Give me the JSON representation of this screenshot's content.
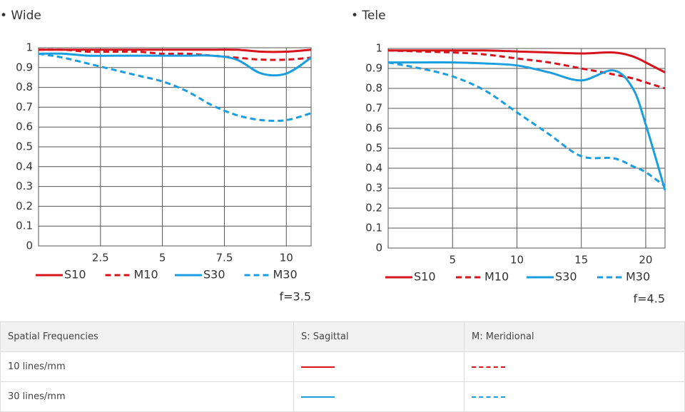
{
  "chart_data": [
    {
      "type": "line",
      "title": "• Wide",
      "annotation": "f=3.5",
      "x": [
        0,
        1,
        2,
        3,
        4,
        5,
        6,
        7,
        8,
        9,
        10,
        11
      ],
      "series": [
        {
          "name": "S10",
          "color": "#d7141e",
          "dashed": false,
          "values": [
            0.99,
            0.99,
            0.99,
            0.99,
            0.99,
            0.99,
            0.99,
            0.99,
            0.99,
            0.98,
            0.98,
            0.99
          ]
        },
        {
          "name": "M10",
          "color": "#d7141e",
          "dashed": true,
          "values": [
            0.99,
            0.99,
            0.98,
            0.98,
            0.98,
            0.97,
            0.97,
            0.96,
            0.95,
            0.94,
            0.94,
            0.95
          ]
        },
        {
          "name": "S30",
          "color": "#1a9ee0",
          "dashed": false,
          "values": [
            0.97,
            0.97,
            0.96,
            0.96,
            0.96,
            0.96,
            0.96,
            0.96,
            0.94,
            0.87,
            0.87,
            0.95
          ]
        },
        {
          "name": "M30",
          "color": "#1a9ee0",
          "dashed": true,
          "values": [
            0.97,
            0.95,
            0.92,
            0.89,
            0.86,
            0.83,
            0.78,
            0.71,
            0.66,
            0.635,
            0.635,
            0.67
          ]
        }
      ],
      "xlim": [
        0,
        11
      ],
      "xticks": [
        2.5,
        5,
        7.5,
        10
      ],
      "ylim": [
        0,
        1
      ],
      "yticks": [
        0,
        0.1,
        0.2,
        0.3,
        0.4,
        0.5,
        0.6,
        0.7,
        0.8,
        0.9,
        1
      ],
      "grid": true
    },
    {
      "type": "line",
      "title": "• Tele",
      "annotation": "f=4.5",
      "x": [
        0,
        2.5,
        5,
        7.5,
        10,
        12.5,
        15,
        17.5,
        19,
        20,
        21.5
      ],
      "series": [
        {
          "name": "S10",
          "color": "#d7141e",
          "dashed": false,
          "values": [
            0.99,
            0.99,
            0.99,
            0.99,
            0.985,
            0.98,
            0.975,
            0.98,
            0.96,
            0.93,
            0.88
          ]
        },
        {
          "name": "M10",
          "color": "#d7141e",
          "dashed": true,
          "values": [
            0.99,
            0.985,
            0.98,
            0.97,
            0.95,
            0.93,
            0.9,
            0.87,
            0.85,
            0.83,
            0.8
          ]
        },
        {
          "name": "S30",
          "color": "#1a9ee0",
          "dashed": false,
          "values": [
            0.93,
            0.93,
            0.93,
            0.925,
            0.915,
            0.88,
            0.84,
            0.89,
            0.8,
            0.62,
            0.29
          ]
        },
        {
          "name": "M30",
          "color": "#1a9ee0",
          "dashed": true,
          "values": [
            0.93,
            0.9,
            0.86,
            0.79,
            0.68,
            0.57,
            0.46,
            0.45,
            0.41,
            0.38,
            0.31
          ]
        }
      ],
      "xlim": [
        0,
        21.5
      ],
      "xticks": [
        5,
        10,
        15,
        20
      ],
      "ylim": [
        0,
        1
      ],
      "yticks": [
        0,
        0.1,
        0.2,
        0.3,
        0.4,
        0.5,
        0.6,
        0.7,
        0.8,
        0.9,
        1
      ],
      "grid": true
    }
  ],
  "table": {
    "header": [
      "Spatial Frequencies",
      "S: Sagittal",
      "M: Meridional"
    ],
    "rows": [
      {
        "label": "10 lines/mm",
        "color": "#d7141e"
      },
      {
        "label": "30 lines/mm",
        "color": "#1a9ee0"
      }
    ]
  }
}
